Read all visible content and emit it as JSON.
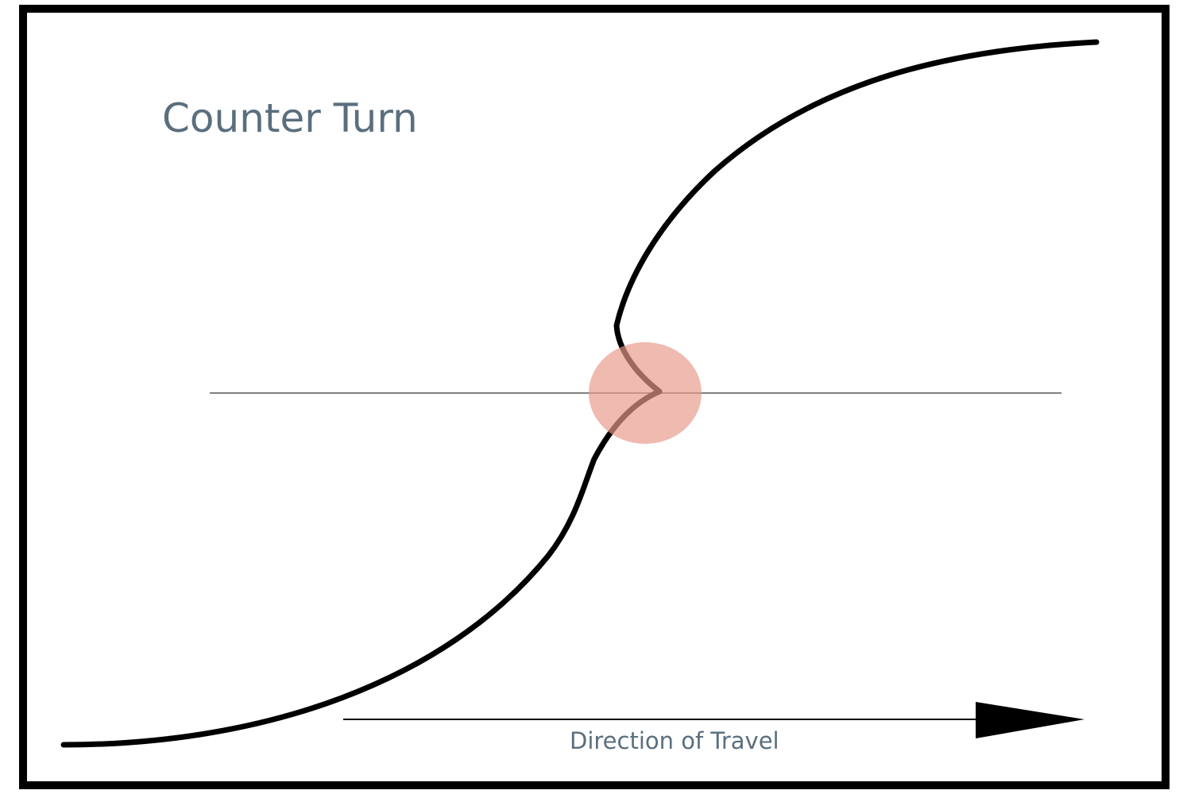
{
  "title": "Counter Turn",
  "direction_label": "Direction of Travel",
  "colors": {
    "text": "#5a6f7e",
    "path": "#000000",
    "highlight": "#e8998a",
    "frame": "#000000"
  }
}
